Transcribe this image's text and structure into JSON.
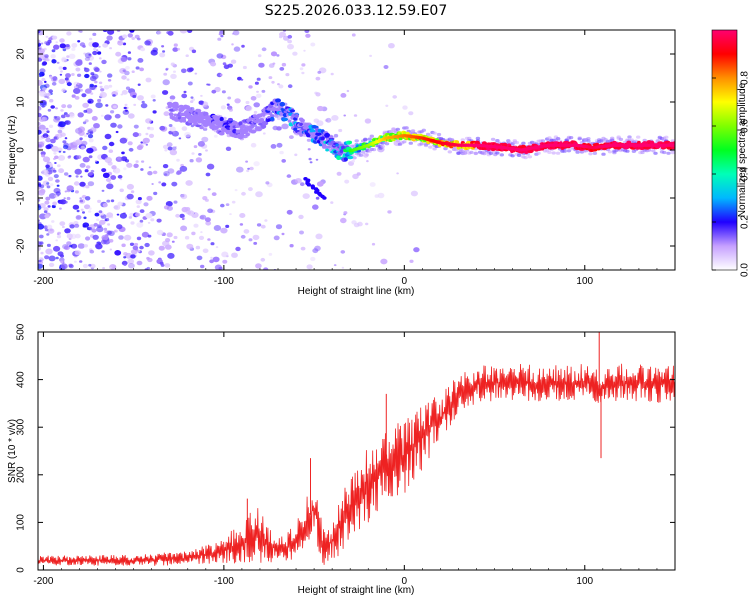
{
  "title": "S225.2026.033.12.59.E07",
  "chart_data": [
    {
      "type": "heatmap",
      "id": "spectrogram",
      "xlabel": "Height of straight line (km)",
      "ylabel": "Frequency (Hz)",
      "xlim": [
        -203,
        150
      ],
      "ylim": [
        -25,
        25
      ],
      "x_ticks": [
        -200,
        -100,
        0,
        100
      ],
      "y_ticks": [
        -20,
        -10,
        0,
        10,
        20
      ],
      "colorbar": {
        "label": "Normalized spectral amplitude",
        "range": [
          0,
          1
        ],
        "ticks": [
          0.0,
          0.2,
          0.4,
          0.6,
          0.8
        ]
      },
      "ridge": [
        {
          "x": -125,
          "y": 8,
          "amp": 0.15
        },
        {
          "x": -110,
          "y": 6,
          "amp": 0.2
        },
        {
          "x": -100,
          "y": 5,
          "amp": 0.25
        },
        {
          "x": -90,
          "y": 4,
          "amp": 0.2
        },
        {
          "x": -80,
          "y": 6,
          "amp": 0.2
        },
        {
          "x": -70,
          "y": 9,
          "amp": 0.3
        },
        {
          "x": -63,
          "y": 7,
          "amp": 0.35
        },
        {
          "x": -55,
          "y": 4,
          "amp": 0.3
        },
        {
          "x": -48,
          "y": 3,
          "amp": 0.35
        },
        {
          "x": -40,
          "y": 1,
          "amp": 0.4
        },
        {
          "x": -35,
          "y": -0.5,
          "amp": 0.45
        },
        {
          "x": -28,
          "y": 0,
          "amp": 0.55
        },
        {
          "x": -20,
          "y": 1,
          "amp": 0.6
        },
        {
          "x": -10,
          "y": 2.5,
          "amp": 0.75
        },
        {
          "x": 0,
          "y": 3,
          "amp": 0.8
        },
        {
          "x": 10,
          "y": 2.5,
          "amp": 0.85
        },
        {
          "x": 20,
          "y": 1.5,
          "amp": 0.9
        },
        {
          "x": 30,
          "y": 1,
          "amp": 0.95
        },
        {
          "x": 40,
          "y": 1,
          "amp": 1.0
        },
        {
          "x": 55,
          "y": 0.5,
          "amp": 1.0
        },
        {
          "x": 65,
          "y": 0,
          "amp": 1.0
        },
        {
          "x": 80,
          "y": 1,
          "amp": 1.0
        },
        {
          "x": 95,
          "y": 1,
          "amp": 1.0
        },
        {
          "x": 105,
          "y": 0.5,
          "amp": 0.95
        },
        {
          "x": 115,
          "y": 1,
          "amp": 1.0
        },
        {
          "x": 130,
          "y": 1,
          "amp": 1.0
        },
        {
          "x": 150,
          "y": 1,
          "amp": 1.0
        }
      ],
      "secondary_feature": {
        "x": [
          -55,
          -45
        ],
        "y": [
          -6,
          -10
        ],
        "amp": 0.2
      }
    },
    {
      "type": "line",
      "id": "snr",
      "xlabel": "Height of straight line (km)",
      "ylabel": "SNR (10 * v/v)",
      "xlim": [
        -203,
        150
      ],
      "ylim": [
        0,
        500
      ],
      "x_ticks": [
        -200,
        -100,
        0,
        100
      ],
      "y_ticks": [
        0,
        100,
        200,
        300,
        400,
        500
      ],
      "color": "#ee2222",
      "envelope": {
        "x": [
          -203,
          -150,
          -120,
          -100,
          -90,
          -80,
          -70,
          -60,
          -50,
          -45,
          -40,
          -30,
          -20,
          -10,
          0,
          10,
          20,
          30,
          40,
          60,
          80,
          100,
          110,
          120,
          150
        ],
        "mean": [
          20,
          20,
          25,
          40,
          60,
          75,
          40,
          60,
          130,
          50,
          60,
          130,
          180,
          210,
          240,
          280,
          320,
          370,
          390,
          395,
          390,
          395,
          380,
          395,
          390
        ],
        "spread": [
          10,
          12,
          15,
          25,
          50,
          60,
          25,
          40,
          60,
          40,
          50,
          70,
          80,
          80,
          80,
          70,
          50,
          40,
          40,
          40,
          40,
          40,
          40,
          40,
          40
        ]
      },
      "spikes": [
        {
          "x": -87,
          "y": 150
        },
        {
          "x": -52,
          "y": 235
        },
        {
          "x": -10,
          "y": 370
        },
        {
          "x": 108,
          "y": 500
        },
        {
          "x": 109,
          "y": 235
        }
      ]
    }
  ]
}
